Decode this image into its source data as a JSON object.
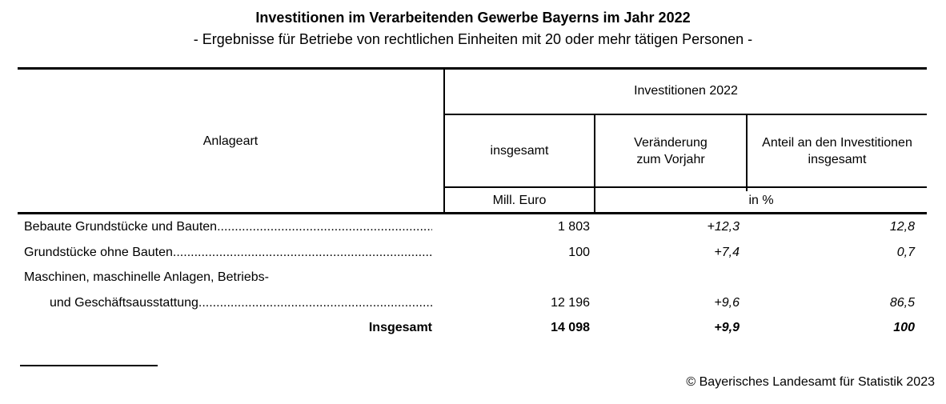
{
  "title": "Investitionen im Verarbeitenden Gewerbe Bayerns im Jahr 2022",
  "subtitle": "- Ergebnisse für Betriebe von rechtlichen Einheiten mit 20 oder mehr tätigen Personen -",
  "table": {
    "row_header": "Anlageart",
    "group_header": "Investitionen 2022",
    "col1_header": "insgesamt",
    "col2_header": "Veränderung zum Vorjahr",
    "col3_header": "Anteil an den Investitionen insgesamt",
    "col1_unit": "Mill. Euro",
    "col23_unit": "in %",
    "dot_leader": "................................................................................................",
    "rows": [
      {
        "label": "Bebaute Grundstücke und Bauten",
        "leader": true,
        "indent": false,
        "total_row": false,
        "total": "1 803",
        "change": "+12,3",
        "share": "12,8"
      },
      {
        "label": "Grundstücke ohne Bauten",
        "leader": true,
        "indent": false,
        "total_row": false,
        "total": "100",
        "change": "+7,4",
        "share": "0,7"
      },
      {
        "label": "Maschinen, maschinelle Anlagen, Betriebs-",
        "leader": false,
        "indent": false,
        "total_row": false,
        "total": "",
        "change": "",
        "share": ""
      },
      {
        "label": "und Geschäftsausstattung",
        "leader": true,
        "indent": true,
        "total_row": false,
        "total": "12 196",
        "change": "+9,6",
        "share": "86,5"
      },
      {
        "label": "Insgesamt",
        "leader": false,
        "indent": false,
        "total_row": true,
        "total": "14 098",
        "change": "+9,9",
        "share": "100"
      }
    ]
  },
  "footer": {
    "copyright": "© Bayerisches Landesamt für Statistik 2023"
  },
  "colors": {
    "text": "#000000",
    "background": "#ffffff",
    "line": "#000000"
  }
}
